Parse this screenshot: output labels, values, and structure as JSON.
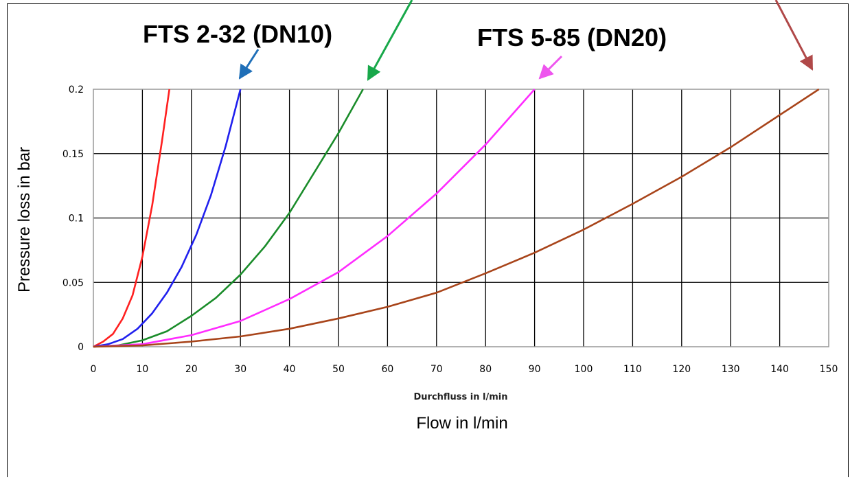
{
  "chart_data": {
    "type": "line",
    "xlabel": "Durchfluss in l/min",
    "xlabel_en": "Flow in l/min",
    "ylabel": "Pressure loss in bar",
    "xlim": [
      0,
      150
    ],
    "ylim": [
      0,
      0.2
    ],
    "x_ticks": [
      "0",
      "10",
      "20",
      "30",
      "40",
      "50",
      "60",
      "70",
      "80",
      "90",
      "100",
      "110",
      "120",
      "130",
      "140",
      "150"
    ],
    "y_ticks": [
      "0",
      "0.05",
      "0.1",
      "0.15",
      "0.2"
    ],
    "grid": true,
    "annotations": [
      {
        "text": "FTS 2-32 (DN10)",
        "series": 1
      },
      {
        "text": "FTS 5-85 (DN20)",
        "series": 3
      }
    ],
    "series": [
      {
        "color": "#ff2020",
        "x": [
          0,
          2,
          4,
          6,
          8,
          10,
          12,
          14,
          15.5
        ],
        "y": [
          0,
          0.004,
          0.01,
          0.022,
          0.04,
          0.07,
          0.11,
          0.16,
          0.2
        ]
      },
      {
        "color": "#2020ee",
        "x": [
          0,
          3,
          6,
          9,
          12,
          15,
          18,
          21,
          24,
          27,
          30
        ],
        "y": [
          0,
          0.002,
          0.006,
          0.014,
          0.026,
          0.042,
          0.062,
          0.087,
          0.118,
          0.156,
          0.2
        ]
      },
      {
        "color": "#1a8c2a",
        "x": [
          0,
          5,
          10,
          15,
          20,
          25,
          30,
          35,
          40,
          45,
          50,
          55
        ],
        "y": [
          0,
          0.001,
          0.005,
          0.012,
          0.024,
          0.038,
          0.056,
          0.078,
          0.104,
          0.135,
          0.166,
          0.2
        ]
      },
      {
        "color": "#ff2cff",
        "x": [
          0,
          10,
          20,
          30,
          40,
          50,
          60,
          70,
          80,
          90
        ],
        "y": [
          0,
          0.002,
          0.009,
          0.02,
          0.037,
          0.058,
          0.086,
          0.119,
          0.157,
          0.2
        ]
      },
      {
        "color": "#a8441a",
        "x": [
          0,
          10,
          20,
          30,
          40,
          50,
          60,
          70,
          80,
          90,
          100,
          110,
          120,
          130,
          140,
          148
        ],
        "y": [
          0,
          0.001,
          0.004,
          0.008,
          0.014,
          0.022,
          0.031,
          0.042,
          0.057,
          0.073,
          0.091,
          0.111,
          0.132,
          0.155,
          0.18,
          0.2
        ]
      }
    ]
  }
}
